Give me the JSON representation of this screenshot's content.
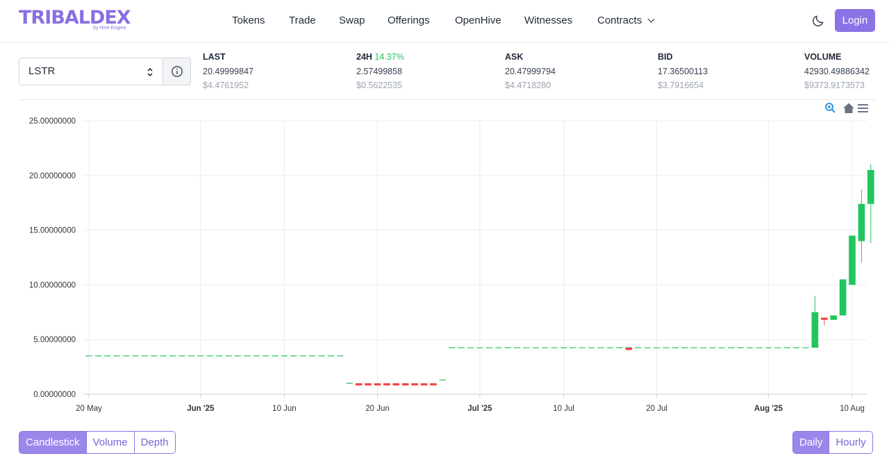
{
  "brand": {
    "name": "TRIBALDEX",
    "byline": "by Hive-Engine",
    "color": "#8b6fe0"
  },
  "nav": {
    "items": [
      "Tokens",
      "Trade",
      "Swap",
      "Offerings",
      "OpenHive",
      "Witnesses",
      "Contracts"
    ],
    "login": "Login",
    "theme_icon": "moon-icon"
  },
  "token_select": {
    "value": "LSTR",
    "info_icon": "info-icon"
  },
  "stats": {
    "last": {
      "label": "LAST",
      "value": "20.49999847",
      "usd": "$4.4761952"
    },
    "change": {
      "label": "24H",
      "percent": "14.37%",
      "value": "2.57499858",
      "usd": "$0.5622535"
    },
    "ask": {
      "label": "ASK",
      "value": "20.47999794",
      "usd": "$4.4718280"
    },
    "bid": {
      "label": "BID",
      "value": "17.36500113",
      "usd": "$3.7916654"
    },
    "volume": {
      "label": "VOLUME",
      "value": "42930.49886342",
      "usd": "$9373.9173573"
    }
  },
  "chart_toolbar": {
    "icons": [
      "zoom-in-icon",
      "home-icon",
      "menu-icon"
    ]
  },
  "chart_data": {
    "type": "candlestick",
    "ylim": [
      0,
      25
    ],
    "y_ticks": [
      "0.00000000",
      "5.00000000",
      "10.00000000",
      "15.00000000",
      "20.00000000",
      "25.00000000"
    ],
    "y_tick_values": [
      0,
      5,
      10,
      15,
      20,
      25
    ],
    "x_ticks": [
      {
        "label": "20 May",
        "date": "2025-05-20",
        "bold": false
      },
      {
        "label": "Jun '25",
        "date": "2025-06-01",
        "bold": true
      },
      {
        "label": "10 Jun",
        "date": "2025-06-10",
        "bold": false
      },
      {
        "label": "20 Jun",
        "date": "2025-06-20",
        "bold": false
      },
      {
        "label": "Jul '25",
        "date": "2025-07-01",
        "bold": true
      },
      {
        "label": "10 Jul",
        "date": "2025-07-10",
        "bold": false
      },
      {
        "label": "20 Jul",
        "date": "2025-07-20",
        "bold": false
      },
      {
        "label": "Aug '25",
        "date": "2025-08-01",
        "bold": true
      },
      {
        "label": "10 Aug",
        "date": "2025-08-10",
        "bold": false
      }
    ],
    "x_range": [
      "2025-05-20",
      "2025-08-11"
    ],
    "up_color": "#22c55e",
    "down_color": "#ef4444",
    "flat_segments": [
      {
        "from": "2025-05-20",
        "to": "2025-06-16",
        "price": 3.5,
        "direction": "up"
      },
      {
        "from": "2025-06-17",
        "to": "2025-06-17",
        "price": 1.0,
        "direction": "up"
      },
      {
        "from": "2025-06-27",
        "to": "2025-06-27",
        "price": 1.3,
        "direction": "up"
      },
      {
        "from": "2025-06-28",
        "to": "2025-08-05",
        "price": 4.25,
        "direction": "up"
      }
    ],
    "candles": [
      {
        "date": "2025-06-18",
        "open": 1.0,
        "high": 1.0,
        "low": 0.8,
        "close": 0.8
      },
      {
        "date": "2025-06-19",
        "open": 1.0,
        "high": 1.0,
        "low": 0.8,
        "close": 0.8
      },
      {
        "date": "2025-06-20",
        "open": 1.0,
        "high": 1.0,
        "low": 0.8,
        "close": 0.8
      },
      {
        "date": "2025-06-21",
        "open": 1.0,
        "high": 1.0,
        "low": 0.8,
        "close": 0.8
      },
      {
        "date": "2025-06-22",
        "open": 1.0,
        "high": 1.0,
        "low": 0.8,
        "close": 0.8
      },
      {
        "date": "2025-06-23",
        "open": 1.0,
        "high": 1.0,
        "low": 0.8,
        "close": 0.8
      },
      {
        "date": "2025-06-24",
        "open": 1.0,
        "high": 1.0,
        "low": 0.8,
        "close": 0.8
      },
      {
        "date": "2025-06-25",
        "open": 1.0,
        "high": 1.0,
        "low": 0.8,
        "close": 0.8
      },
      {
        "date": "2025-06-26",
        "open": 1.0,
        "high": 1.0,
        "low": 0.8,
        "close": 0.8
      },
      {
        "date": "2025-07-17",
        "open": 4.25,
        "high": 4.25,
        "low": 4.0,
        "close": 4.05
      },
      {
        "date": "2025-08-06",
        "open": 4.25,
        "high": 9.0,
        "low": 4.25,
        "close": 7.5
      },
      {
        "date": "2025-08-07",
        "open": 7.0,
        "high": 7.0,
        "low": 6.3,
        "close": 6.8
      },
      {
        "date": "2025-08-08",
        "open": 6.8,
        "high": 7.2,
        "low": 6.8,
        "close": 7.2
      },
      {
        "date": "2025-08-09",
        "open": 7.2,
        "high": 10.5,
        "low": 7.2,
        "close": 10.5
      },
      {
        "date": "2025-08-10",
        "open": 10.0,
        "high": 14.5,
        "low": 10.0,
        "close": 14.5
      },
      {
        "date": "2025-08-11",
        "open": 14.0,
        "high": 18.7,
        "low": 12.0,
        "close": 17.4
      },
      {
        "date": "2025-08-12",
        "open": 17.4,
        "high": 21.0,
        "low": 13.8,
        "close": 20.5
      }
    ]
  },
  "view_tabs": {
    "items": [
      "Candlestick",
      "Volume",
      "Depth"
    ],
    "active": "Candlestick"
  },
  "interval_tabs": {
    "items": [
      "Daily",
      "Hourly"
    ],
    "active": "Daily"
  }
}
